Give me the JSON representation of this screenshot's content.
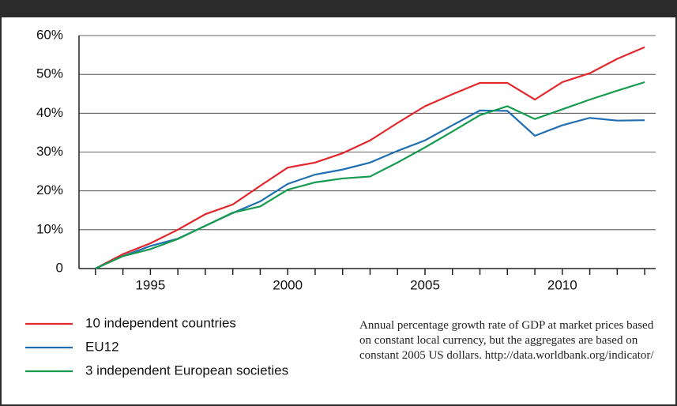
{
  "chart_data": {
    "type": "line",
    "note": "Annual percentage growth rate of GDP at market prices based on constant local currency, but the aggregates are based on constant 2005 US dollars. http://data.worldbank.org/indicator/",
    "x": [
      1993,
      1994,
      1995,
      1996,
      1997,
      1998,
      1999,
      2000,
      2001,
      2002,
      2003,
      2004,
      2005,
      2006,
      2007,
      2008,
      2009,
      2010,
      2011,
      2012,
      2013
    ],
    "series": [
      {
        "name": "10 independent countries",
        "color": "#e3262b",
        "values": [
          0,
          3.7,
          6.5,
          10,
          14,
          16.5,
          21.3,
          26,
          27.3,
          29.7,
          33,
          37.5,
          41.8,
          44.9,
          47.8,
          47.8,
          43.5,
          48,
          50.3,
          54,
          57
        ]
      },
      {
        "name": "EU12",
        "color": "#1f6fb2",
        "values": [
          0,
          3.2,
          5.8,
          7.7,
          11,
          14.3,
          17.3,
          21.8,
          24.2,
          25.5,
          27.3,
          30.3,
          33,
          36.9,
          40.7,
          40.6,
          34.2,
          36.9,
          38.8,
          38.1,
          38.2
        ]
      },
      {
        "name": "3 independent European societies",
        "color": "#169b4f",
        "values": [
          0,
          3.2,
          5,
          7.6,
          11,
          14.4,
          16,
          20.3,
          22.2,
          23.2,
          23.7,
          27.3,
          31.2,
          35.3,
          39.5,
          41.8,
          38.5,
          41,
          43.5,
          45.8,
          48
        ]
      }
    ],
    "xlim": [
      1992.4,
      2013.4
    ],
    "xticks": [
      1995,
      2000,
      2005,
      2010
    ],
    "xminor_ticks": [
      1993,
      1994,
      1995,
      1996,
      1997,
      1998,
      1999,
      2000,
      2001,
      2002,
      2003,
      2004,
      2005,
      2006,
      2007,
      2008,
      2009,
      2010,
      2011,
      2012,
      2013
    ],
    "ylim": [
      0,
      60
    ],
    "yticks": [
      0,
      {
        "value": 10,
        "label": "10%"
      },
      {
        "value": 20,
        "label": "20%"
      },
      {
        "value": 30,
        "label": "30%"
      },
      {
        "value": 40,
        "label": "40%"
      },
      {
        "value": 50,
        "label": "50%"
      },
      {
        "value": 60,
        "label": "60%"
      }
    ],
    "grid": true
  }
}
